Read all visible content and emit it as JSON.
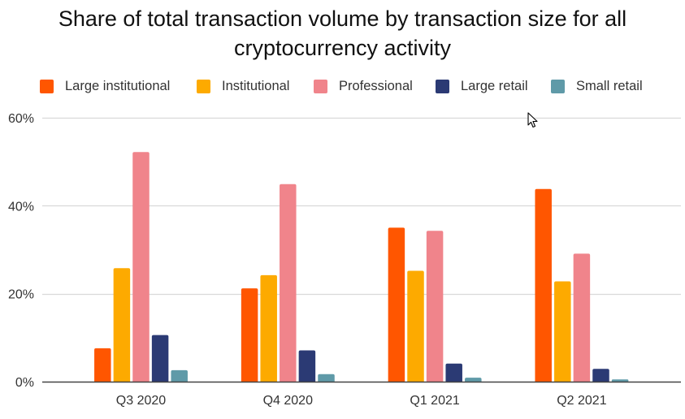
{
  "chart_data": {
    "type": "bar",
    "title": "Share of total transaction volume by transaction size for all cryptocurrency activity",
    "title_lines": [
      "Share of total transaction volume by transaction size for all",
      "cryptocurrency activity"
    ],
    "xlabel": "",
    "ylabel": "",
    "categories": [
      "Q3 2020",
      "Q4 2020",
      "Q1 2021",
      "Q2 2021"
    ],
    "series": [
      {
        "name": "Large institutional",
        "color": "#ff5600",
        "values": [
          7.6,
          21.2,
          35.0,
          43.8
        ]
      },
      {
        "name": "Institutional",
        "color": "#fdaa00",
        "values": [
          25.8,
          24.2,
          25.2,
          22.8
        ]
      },
      {
        "name": "Professional",
        "color": "#f0848b",
        "values": [
          52.2,
          44.9,
          34.3,
          29.1
        ]
      },
      {
        "name": "Large retail",
        "color": "#2b3a74",
        "values": [
          10.6,
          7.1,
          4.1,
          2.9
        ]
      },
      {
        "name": "Small retail",
        "color": "#5f9aa8",
        "values": [
          2.6,
          1.7,
          0.9,
          0.5
        ]
      }
    ],
    "ylim": [
      0,
      60
    ],
    "yticks": [
      0,
      20,
      40,
      60
    ],
    "ytick_labels": [
      "0%",
      "20%",
      "40%",
      "60%"
    ],
    "unit": "%",
    "grid": true,
    "legend_position": "top"
  },
  "cursor": {
    "icon": "mouse-pointer-icon"
  }
}
